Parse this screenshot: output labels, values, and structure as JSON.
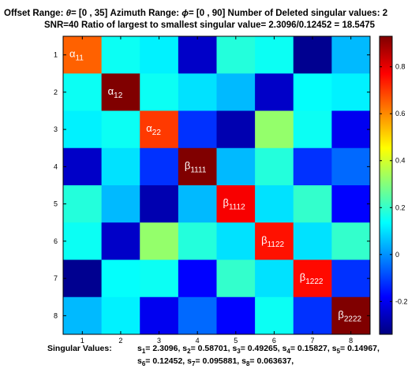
{
  "title": {
    "line1_parts": [
      {
        "t": "Offset Range: "
      },
      {
        "t": "θ",
        "greek": true
      },
      {
        "t": "= [0 , 35]      Azimuth Range: "
      },
      {
        "t": "ϕ",
        "greek": true
      },
      {
        "t": "= [0 , 90]        Number of Deleted singular values: 2"
      }
    ],
    "line2": "SNR=40      Ratio of largest to smallest singular value= 2.3096/0.12452 = 18.5475"
  },
  "chart_data": {
    "type": "heatmap",
    "x": [
      1,
      2,
      3,
      4,
      5,
      6,
      7,
      8
    ],
    "y": [
      1,
      2,
      3,
      4,
      5,
      6,
      7,
      8
    ],
    "xticks": [
      "1",
      "2",
      "3",
      "4",
      "5",
      "6",
      "7",
      "8"
    ],
    "yticks": [
      "1",
      "2",
      "3",
      "4",
      "5",
      "6",
      "7",
      "8"
    ],
    "colorbar": {
      "ticks": [
        "0.8",
        "0.6",
        "0.4",
        "0.2",
        "0",
        "-0.2"
      ],
      "tick_values": [
        0.8,
        0.6,
        0.4,
        0.2,
        0,
        -0.2
      ],
      "clim": [
        -0.34,
        0.93
      ],
      "colormap": "jet"
    },
    "values": [
      [
        0.65,
        0.15,
        0.12,
        -0.25,
        0.18,
        0.15,
        -0.32,
        0.05
      ],
      [
        0.15,
        0.93,
        0.15,
        0.1,
        0.05,
        -0.25,
        0.14,
        0.12
      ],
      [
        0.12,
        0.15,
        0.7,
        -0.12,
        -0.28,
        0.32,
        0.15,
        -0.2
      ],
      [
        -0.25,
        0.1,
        -0.12,
        0.93,
        0.05,
        0.18,
        -0.12,
        -0.05
      ],
      [
        0.18,
        0.05,
        -0.28,
        0.05,
        0.78,
        0.1,
        0.2,
        -0.18
      ],
      [
        0.15,
        -0.25,
        0.32,
        0.18,
        0.1,
        0.75,
        0.1,
        0.2
      ],
      [
        -0.32,
        0.14,
        0.15,
        -0.18,
        0.2,
        0.1,
        0.76,
        -0.12
      ],
      [
        0.05,
        0.12,
        -0.2,
        -0.05,
        -0.18,
        0.15,
        -0.12,
        0.93
      ]
    ],
    "annotations": [
      {
        "row": 1,
        "col": 1,
        "sym": "α",
        "sub": "11"
      },
      {
        "row": 2,
        "col": 2,
        "sym": "α",
        "sub": "12"
      },
      {
        "row": 3,
        "col": 3,
        "sym": "α",
        "sub": "22"
      },
      {
        "row": 4,
        "col": 4,
        "sym": "β",
        "sub": "1111"
      },
      {
        "row": 5,
        "col": 5,
        "sym": "β",
        "sub": "1112"
      },
      {
        "row": 6,
        "col": 6,
        "sym": "β",
        "sub": "1122"
      },
      {
        "row": 7,
        "col": 7,
        "sym": "β",
        "sub": "1222"
      },
      {
        "row": 8,
        "col": 8,
        "sym": "β",
        "sub": "2222"
      }
    ]
  },
  "singular_values": {
    "label": "Singular Values:",
    "line1": [
      {
        "i": "1",
        "v": "= 2.3096, "
      },
      {
        "i": "2",
        "v": "= 0.58701, "
      },
      {
        "i": "3",
        "v": "= 0.49265, "
      },
      {
        "i": "4",
        "v": "= 0.15827, "
      },
      {
        "i": "5",
        "v": "= 0.14967,"
      }
    ],
    "line2": [
      {
        "i": "6",
        "v": "= 0.12452, "
      },
      {
        "i": "7",
        "v": "= 0.095881, "
      },
      {
        "i": "8",
        "v": "= 0.063637,"
      }
    ]
  }
}
